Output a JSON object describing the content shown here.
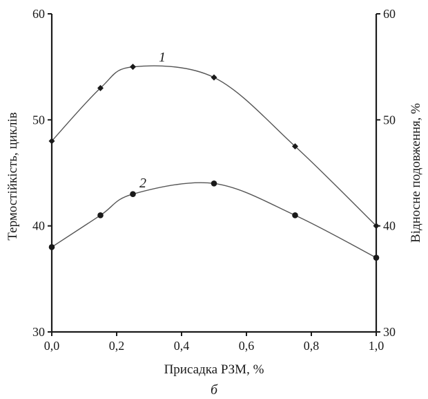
{
  "chart_data": {
    "type": "line",
    "xlabel": "Присадка РЗМ, %",
    "ylabel_left": "Термостійкість, циклів",
    "ylabel_right": "Відносне подовження, %",
    "caption": "б",
    "xlim": [
      0,
      1.0
    ],
    "ylim": [
      30,
      60
    ],
    "x_ticks": [
      "0,0",
      "0,2",
      "0,4",
      "0,6",
      "0,8",
      "1,0"
    ],
    "x_tick_values": [
      0,
      0.2,
      0.4,
      0.6,
      0.8,
      1.0
    ],
    "y_left_ticks": [
      "30",
      "40",
      "50",
      "60"
    ],
    "y_right_ticks": [
      "30",
      "40",
      "50",
      "60"
    ],
    "y_tick_values": [
      30,
      40,
      50,
      60
    ],
    "series": [
      {
        "name": "1",
        "marker": "diamond",
        "color": "#1a1a1a",
        "line_color": "#555555",
        "x": [
          0,
          0.15,
          0.25,
          0.5,
          0.75,
          1.0
        ],
        "y": [
          48,
          53,
          55,
          54,
          47.5,
          40
        ]
      },
      {
        "name": "2",
        "marker": "circle",
        "color": "#1a1a1a",
        "line_color": "#555555",
        "x": [
          0,
          0.15,
          0.25,
          0.5,
          0.75,
          1.0
        ],
        "y": [
          38,
          41,
          43,
          44,
          41,
          37
        ]
      }
    ]
  }
}
